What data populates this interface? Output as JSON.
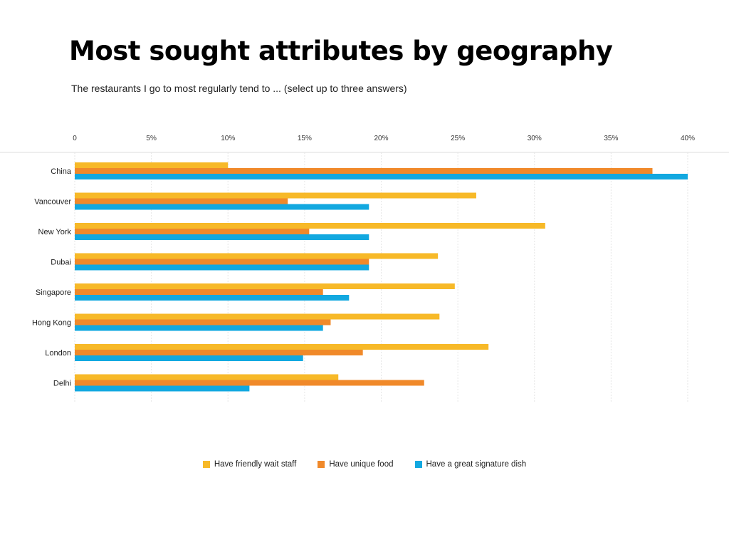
{
  "chart_data": {
    "type": "bar",
    "orientation": "horizontal",
    "title": "Most sought attributes by geography",
    "subtitle": "The restaurants I go to most regularly tend to ... (select up to three answers)",
    "xlim": [
      0,
      40
    ],
    "x_ticks": [
      "0",
      "5%",
      "10%",
      "15%",
      "20%",
      "25%",
      "30%",
      "35%",
      "40%"
    ],
    "categories": [
      "China",
      "Vancouver",
      "New York",
      "Dubai",
      "Singapore",
      "Hong Kong",
      "London",
      "Delhi"
    ],
    "series": [
      {
        "name": "Have friendly wait staff",
        "color": "#F7B928",
        "values": [
          10,
          26.2,
          30.7,
          23.7,
          24.8,
          23.8,
          27.0,
          17.2
        ]
      },
      {
        "name": "Have unique food",
        "color": "#F0892A",
        "values": [
          37.7,
          13.9,
          15.3,
          19.2,
          16.2,
          16.7,
          18.8,
          22.8
        ]
      },
      {
        "name": "Have a great signature dish",
        "color": "#12A8E0",
        "values": [
          40,
          19.2,
          19.2,
          19.2,
          17.9,
          16.2,
          14.9,
          11.4
        ]
      }
    ],
    "grid": true,
    "legend_position": "bottom-center"
  }
}
